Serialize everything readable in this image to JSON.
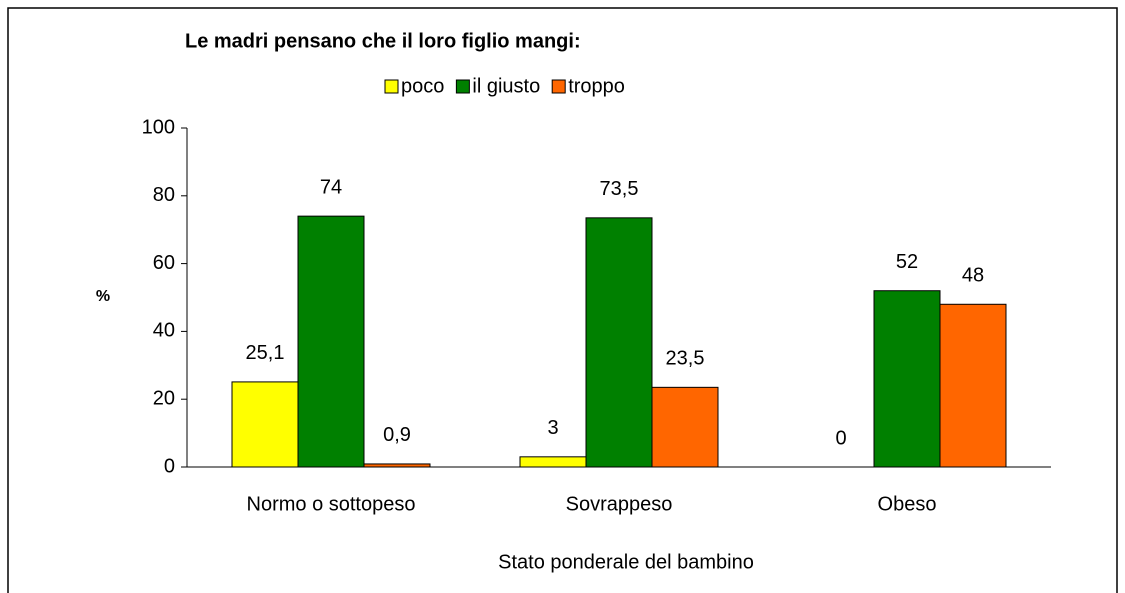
{
  "chart_data": {
    "type": "bar",
    "title": "Le madri pensano che il loro figlio mangi:",
    "y_label": "%",
    "x_label": "Stato ponderale del bambino",
    "categories": [
      "Normo o sottopeso",
      "Sovrappeso",
      "Obeso"
    ],
    "series": [
      {
        "name": "poco",
        "color": "#ffff00",
        "values": [
          25.1,
          3,
          0
        ],
        "value_labels": [
          "25,1",
          "3",
          "0"
        ]
      },
      {
        "name": "il giusto",
        "color": "#008000",
        "values": [
          74,
          73.5,
          52
        ],
        "value_labels": [
          "74",
          "73,5",
          "52"
        ]
      },
      {
        "name": "troppo",
        "color": "#ff6600",
        "values": [
          0.9,
          23.5,
          48
        ],
        "value_labels": [
          "0,9",
          "23,5",
          "48"
        ]
      }
    ],
    "ylim": [
      0,
      100
    ],
    "yticks": [
      0,
      20,
      40,
      60,
      80,
      100
    ],
    "legend": "top"
  }
}
